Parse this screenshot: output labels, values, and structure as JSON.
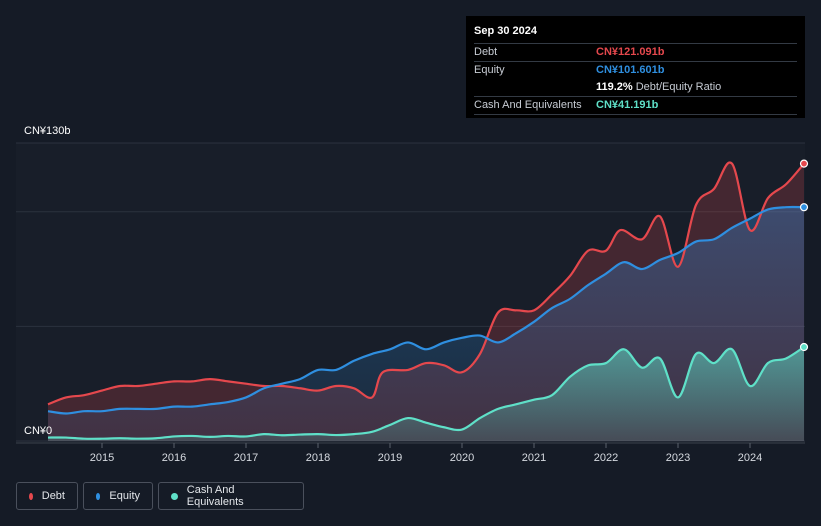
{
  "tooltip": {
    "date": "Sep 30 2024",
    "debt_label": "Debt",
    "debt_value": "CN¥121.091b",
    "equity_label": "Equity",
    "equity_value": "CN¥101.601b",
    "ratio_value": "119.2%",
    "ratio_label": "Debt/Equity Ratio",
    "cash_label": "Cash And Equivalents",
    "cash_value": "CN¥41.191b"
  },
  "legend": {
    "debt": "Debt",
    "equity": "Equity",
    "cash": "Cash And Equivalents"
  },
  "colors": {
    "debt": "#e5484d",
    "equity": "#2f8fe0",
    "cash": "#5fe0c8",
    "background": "#151b26"
  },
  "chart_data": {
    "type": "area",
    "ylim": [
      0,
      130
    ],
    "y_unit": "CN¥ billions",
    "y_tick_labels": [
      "CN¥0",
      "CN¥130b"
    ],
    "x_tick_labels": [
      "2015",
      "2016",
      "2017",
      "2018",
      "2019",
      "2020",
      "2021",
      "2022",
      "2023",
      "2024"
    ],
    "series": [
      {
        "name": "Debt",
        "points": [
          [
            2014.25,
            16
          ],
          [
            2014.5,
            19
          ],
          [
            2014.75,
            20
          ],
          [
            2015.0,
            22
          ],
          [
            2015.25,
            24
          ],
          [
            2015.5,
            24
          ],
          [
            2015.75,
            25
          ],
          [
            2016.0,
            26
          ],
          [
            2016.25,
            26
          ],
          [
            2016.5,
            27
          ],
          [
            2016.75,
            26
          ],
          [
            2017.0,
            25
          ],
          [
            2017.25,
            24
          ],
          [
            2017.5,
            24
          ],
          [
            2017.75,
            23
          ],
          [
            2018.0,
            22
          ],
          [
            2018.25,
            24
          ],
          [
            2018.5,
            23
          ],
          [
            2018.75,
            19
          ],
          [
            2018.9,
            30
          ],
          [
            2019.25,
            31
          ],
          [
            2019.5,
            34
          ],
          [
            2019.75,
            33
          ],
          [
            2020.0,
            30
          ],
          [
            2020.25,
            38
          ],
          [
            2020.5,
            56
          ],
          [
            2020.75,
            57
          ],
          [
            2021.0,
            57
          ],
          [
            2021.25,
            64
          ],
          [
            2021.5,
            72
          ],
          [
            2021.75,
            83
          ],
          [
            2022.0,
            83
          ],
          [
            2022.2,
            92
          ],
          [
            2022.5,
            88
          ],
          [
            2022.75,
            98
          ],
          [
            2023.0,
            76
          ],
          [
            2023.25,
            103
          ],
          [
            2023.5,
            110
          ],
          [
            2023.75,
            121
          ],
          [
            2024.0,
            92
          ],
          [
            2024.25,
            106
          ],
          [
            2024.5,
            112
          ],
          [
            2024.75,
            121
          ]
        ]
      },
      {
        "name": "Equity",
        "points": [
          [
            2014.25,
            13
          ],
          [
            2014.5,
            12
          ],
          [
            2014.75,
            13
          ],
          [
            2015.0,
            13
          ],
          [
            2015.25,
            14
          ],
          [
            2015.5,
            14
          ],
          [
            2015.75,
            14
          ],
          [
            2016.0,
            15
          ],
          [
            2016.25,
            15
          ],
          [
            2016.5,
            16
          ],
          [
            2016.75,
            17
          ],
          [
            2017.0,
            19
          ],
          [
            2017.25,
            23
          ],
          [
            2017.5,
            25
          ],
          [
            2017.75,
            27
          ],
          [
            2018.0,
            31
          ],
          [
            2018.25,
            31
          ],
          [
            2018.5,
            35
          ],
          [
            2018.75,
            38
          ],
          [
            2019.0,
            40
          ],
          [
            2019.25,
            43
          ],
          [
            2019.5,
            40
          ],
          [
            2019.75,
            43
          ],
          [
            2020.0,
            45
          ],
          [
            2020.25,
            46
          ],
          [
            2020.5,
            43
          ],
          [
            2020.75,
            47
          ],
          [
            2021.0,
            52
          ],
          [
            2021.25,
            58
          ],
          [
            2021.5,
            62
          ],
          [
            2021.75,
            68
          ],
          [
            2022.0,
            73
          ],
          [
            2022.25,
            78
          ],
          [
            2022.5,
            75
          ],
          [
            2022.75,
            79
          ],
          [
            2023.0,
            82
          ],
          [
            2023.25,
            87
          ],
          [
            2023.5,
            88
          ],
          [
            2023.75,
            93
          ],
          [
            2024.0,
            97
          ],
          [
            2024.25,
            101
          ],
          [
            2024.5,
            102
          ],
          [
            2024.75,
            102
          ]
        ]
      },
      {
        "name": "Cash And Equivalents",
        "points": [
          [
            2014.25,
            1.5
          ],
          [
            2014.5,
            1.5
          ],
          [
            2014.75,
            1
          ],
          [
            2015.0,
            1
          ],
          [
            2015.25,
            1.2
          ],
          [
            2015.5,
            1
          ],
          [
            2015.75,
            1.2
          ],
          [
            2016.0,
            2
          ],
          [
            2016.25,
            2.2
          ],
          [
            2016.5,
            1.8
          ],
          [
            2016.75,
            2.2
          ],
          [
            2017.0,
            2
          ],
          [
            2017.25,
            3
          ],
          [
            2017.5,
            2.5
          ],
          [
            2017.75,
            2.8
          ],
          [
            2018.0,
            3
          ],
          [
            2018.25,
            2.6
          ],
          [
            2018.5,
            3
          ],
          [
            2018.75,
            4
          ],
          [
            2019.0,
            7
          ],
          [
            2019.25,
            10
          ],
          [
            2019.5,
            8
          ],
          [
            2019.75,
            6
          ],
          [
            2020.0,
            5
          ],
          [
            2020.25,
            10
          ],
          [
            2020.5,
            14
          ],
          [
            2020.75,
            16
          ],
          [
            2021.0,
            18
          ],
          [
            2021.25,
            20
          ],
          [
            2021.5,
            28
          ],
          [
            2021.75,
            33
          ],
          [
            2022.0,
            34
          ],
          [
            2022.25,
            40
          ],
          [
            2022.5,
            32
          ],
          [
            2022.75,
            36
          ],
          [
            2023.0,
            19
          ],
          [
            2023.25,
            38
          ],
          [
            2023.5,
            34
          ],
          [
            2023.75,
            40
          ],
          [
            2024.0,
            24
          ],
          [
            2024.25,
            34
          ],
          [
            2024.5,
            36
          ],
          [
            2024.75,
            41
          ]
        ]
      }
    ],
    "gridlines": true,
    "legend_position": "bottom-left"
  }
}
